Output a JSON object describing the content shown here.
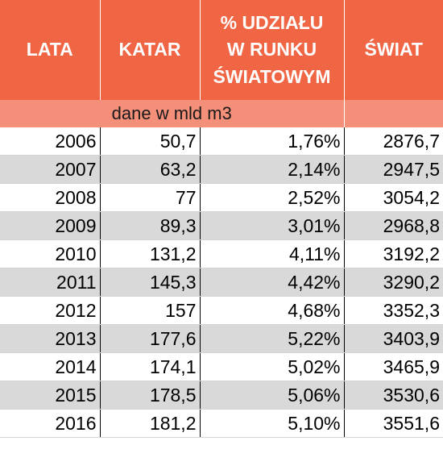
{
  "headers": {
    "lata": "LATA",
    "katar": "KATAR",
    "udzial_line1": "% UDZIAŁU",
    "udzial_line2": "W RUNKU",
    "udzial_line3": "ŚWIATOWYM",
    "swiat": "ŚWIAT"
  },
  "unit_note": "dane w mld m3",
  "colors": {
    "header_bg": "#f06543",
    "subheader_bg": "#f4907a",
    "alt_row_bg": "#d9d9d9"
  },
  "rows": [
    {
      "year": "2006",
      "katar": "50,7",
      "share": "1,76%",
      "world": "2876,7"
    },
    {
      "year": "2007",
      "katar": "63,2",
      "share": "2,14%",
      "world": "2947,5"
    },
    {
      "year": "2008",
      "katar": "77",
      "share": "2,52%",
      "world": "3054,2"
    },
    {
      "year": "2009",
      "katar": "89,3",
      "share": "3,01%",
      "world": "2968,8"
    },
    {
      "year": "2010",
      "katar": "131,2",
      "share": "4,11%",
      "world": "3192,2"
    },
    {
      "year": "2011",
      "katar": "145,3",
      "share": "4,42%",
      "world": "3290,2"
    },
    {
      "year": "2012",
      "katar": "157",
      "share": "4,68%",
      "world": "3352,3"
    },
    {
      "year": "2013",
      "katar": "177,6",
      "share": "5,22%",
      "world": "3403,9"
    },
    {
      "year": "2014",
      "katar": "174,1",
      "share": "5,02%",
      "world": "3465,9"
    },
    {
      "year": "2015",
      "katar": "178,5",
      "share": "5,06%",
      "world": "3530,6"
    },
    {
      "year": "2016",
      "katar": "181,2",
      "share": "5,10%",
      "world": "3551,6"
    }
  ]
}
